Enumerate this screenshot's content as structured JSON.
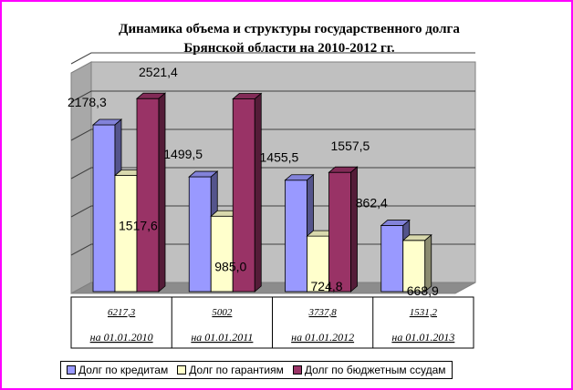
{
  "chart_data": {
    "type": "bar",
    "title_line1": "Динамика объема и структуры государственного  долга",
    "title_line2": "Брянской области на 2010-2012 гг.",
    "xlabel": "",
    "ylabel": "",
    "ylim": [
      0,
      3000
    ],
    "grid": true,
    "categories": [
      "на 01.01.2010",
      "на 01.01.2011",
      "на 01.01.2012",
      "на 01.01.2013"
    ],
    "category_totals": [
      "6217,3",
      "5002",
      "3737,8",
      "1531,2"
    ],
    "series": [
      {
        "name": "Долг по кредитам",
        "values": [
          2178.3,
          1499.5,
          1455.5,
          862.4
        ],
        "labels": [
          "2178,3",
          "1499,5",
          "1455,5",
          "862,4"
        ],
        "color": "#9999ff"
      },
      {
        "name": "Долг по гарантиям",
        "values": [
          1517.6,
          985.0,
          724.8,
          668.9
        ],
        "labels": [
          "1517,6",
          "985,0",
          "724,8",
          "668,9"
        ],
        "color": "#ffffcc"
      },
      {
        "name": "Долг по бюджетным ссудам",
        "values": [
          2521.4,
          2517.5,
          1557.5,
          0
        ],
        "labels": [
          "2521,4",
          "",
          "1557,5",
          ""
        ],
        "color": "#993366"
      }
    ],
    "legend_position": "bottom"
  }
}
